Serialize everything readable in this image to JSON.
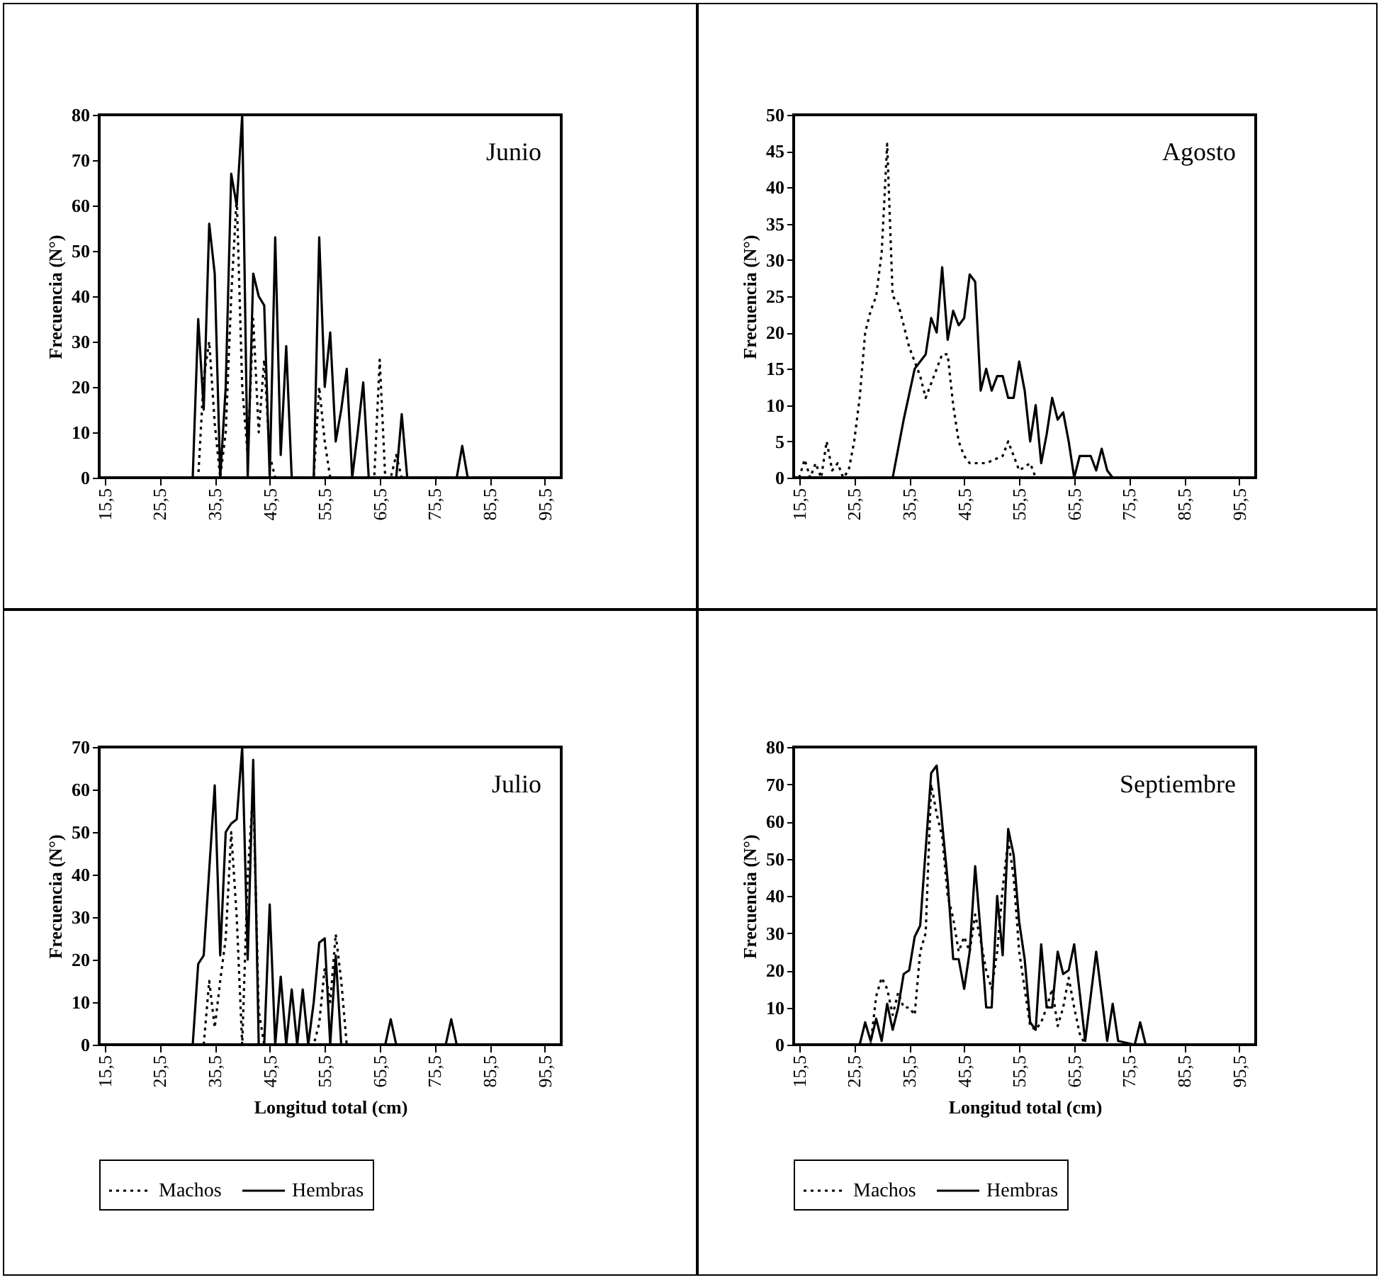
{
  "chart_data": [
    {
      "type": "line",
      "title": "Junio",
      "ylabel": "Frecuencia (N°)",
      "xlim": [
        14.5,
        98.5
      ],
      "ylim": [
        0,
        80
      ],
      "yticks": [
        0,
        10,
        20,
        30,
        40,
        50,
        60,
        70,
        80
      ],
      "xticks": [
        {
          "value": 15.5,
          "label": "15,5"
        },
        {
          "value": 25.5,
          "label": "25,5"
        },
        {
          "value": 35.5,
          "label": "35,5"
        },
        {
          "value": 45.5,
          "label": "45,5"
        },
        {
          "value": 55.5,
          "label": "55,5"
        },
        {
          "value": 65.5,
          "label": "65,5"
        },
        {
          "value": 75.5,
          "label": "75,5"
        },
        {
          "value": 85.5,
          "label": "85,5"
        },
        {
          "value": 95.5,
          "label": "95,5"
        }
      ],
      "grid": false,
      "legend": false,
      "series": [
        {
          "color": "#000000",
          "line_style": "dotted",
          "x": [
            15.5,
            32.5,
            33.5,
            34.5,
            35.5,
            36.5,
            37.5,
            38.5,
            39.5,
            40.5,
            41.5,
            42.5,
            43.5,
            44.5,
            45.5,
            46.5,
            53.5,
            54.5,
            55.5,
            56.5,
            64.5,
            65.5,
            66.5,
            67.5,
            68.5,
            69.5,
            98.5
          ],
          "values": [
            0,
            0,
            22,
            30,
            12,
            0,
            10,
            40,
            62,
            20,
            5,
            35,
            10,
            26,
            5,
            0,
            0,
            20,
            8,
            0,
            0,
            26,
            0,
            0,
            5,
            0,
            0
          ]
        },
        {
          "color": "#000000",
          "line_style": "solid",
          "x": [
            15.5,
            31.5,
            32.5,
            33.5,
            34.5,
            35.5,
            36.5,
            37.5,
            38.5,
            39.5,
            40.5,
            41.5,
            42.5,
            43.5,
            44.5,
            45.5,
            46.5,
            47.5,
            48.5,
            49.5,
            53.5,
            54.5,
            55.5,
            56.5,
            57.5,
            58.5,
            59.5,
            60.5,
            61.5,
            62.5,
            63.5,
            68.5,
            69.5,
            70.5,
            79.5,
            80.5,
            81.5,
            98.5
          ],
          "values": [
            0,
            0,
            35,
            15,
            56,
            45,
            0,
            20,
            67,
            60,
            80,
            0,
            45,
            40,
            38,
            0,
            53,
            5,
            29,
            0,
            0,
            53,
            20,
            32,
            8,
            15,
            24,
            0,
            10,
            21,
            0,
            0,
            14,
            0,
            0,
            7,
            0,
            0
          ]
        }
      ]
    },
    {
      "type": "line",
      "title": "Agosto",
      "ylabel": "Frecuencia (N°)",
      "xlim": [
        14.5,
        98.5
      ],
      "ylim": [
        0,
        50
      ],
      "yticks": [
        0,
        5,
        10,
        15,
        20,
        25,
        30,
        35,
        40,
        45,
        50
      ],
      "xticks": [
        {
          "value": 15.5,
          "label": "15,5"
        },
        {
          "value": 25.5,
          "label": "25,5"
        },
        {
          "value": 35.5,
          "label": "35,5"
        },
        {
          "value": 45.5,
          "label": "45,5"
        },
        {
          "value": 55.5,
          "label": "55,5"
        },
        {
          "value": 65.5,
          "label": "65,5"
        },
        {
          "value": 75.5,
          "label": "75,5"
        },
        {
          "value": 85.5,
          "label": "85,5"
        },
        {
          "value": 95.5,
          "label": "95,5"
        }
      ],
      "grid": false,
      "legend": false,
      "series": [
        {
          "color": "#000000",
          "line_style": "dotted",
          "x": [
            15.5,
            16.5,
            17.5,
            18.5,
            19.5,
            20.5,
            21.5,
            22.5,
            23.5,
            24.5,
            25.5,
            26.5,
            27.5,
            28.5,
            29.5,
            30.5,
            31.5,
            32.5,
            33.5,
            34.5,
            35.5,
            36.5,
            37.5,
            38.5,
            39.5,
            40.5,
            41.5,
            42.5,
            43.5,
            44.5,
            45.5,
            46.5,
            49.5,
            52.5,
            53.5,
            55.5,
            57.5,
            58.5,
            98.5
          ],
          "values": [
            0,
            2.5,
            0,
            2,
            0,
            5,
            1,
            2,
            0,
            1,
            5,
            11,
            20,
            23,
            25,
            31,
            46,
            25,
            24,
            21,
            18,
            16,
            14,
            11,
            13,
            15,
            17,
            17,
            10,
            5,
            3,
            2,
            2,
            3,
            5,
            1,
            2,
            0,
            0
          ]
        },
        {
          "color": "#000000",
          "line_style": "solid",
          "x": [
            15.5,
            32.5,
            34.5,
            36.5,
            38.5,
            39.5,
            40.5,
            41.5,
            42.5,
            43.5,
            44.5,
            45.5,
            46.5,
            47.5,
            48.5,
            49.5,
            50.5,
            51.5,
            52.5,
            53.5,
            54.5,
            55.5,
            56.5,
            57.5,
            58.5,
            59.5,
            60.5,
            61.5,
            62.5,
            63.5,
            64.5,
            65.5,
            66.5,
            67.5,
            68.5,
            69.5,
            70.5,
            71.5,
            72.5,
            98.5
          ],
          "values": [
            0,
            0,
            8,
            15,
            17,
            22,
            20,
            29,
            19,
            23,
            21,
            22,
            28,
            27,
            12,
            15,
            12,
            14,
            14,
            11,
            11,
            16,
            12,
            5,
            10,
            2,
            6,
            11,
            8,
            9,
            5,
            0,
            3,
            3,
            3,
            1,
            4,
            1,
            0,
            0
          ]
        }
      ]
    },
    {
      "type": "line",
      "title": "Julio",
      "ylabel": "Frecuencia (N°)",
      "xlabel": "Longitud total (cm)",
      "xlim": [
        14.5,
        98.5
      ],
      "ylim": [
        0,
        70
      ],
      "yticks": [
        0,
        10,
        20,
        30,
        40,
        50,
        60,
        70
      ],
      "xticks": [
        {
          "value": 15.5,
          "label": "15,5"
        },
        {
          "value": 25.5,
          "label": "25,5"
        },
        {
          "value": 35.5,
          "label": "35,5"
        },
        {
          "value": 45.5,
          "label": "45,5"
        },
        {
          "value": 55.5,
          "label": "55,5"
        },
        {
          "value": 65.5,
          "label": "65,5"
        },
        {
          "value": 75.5,
          "label": "75,5"
        },
        {
          "value": 85.5,
          "label": "85,5"
        },
        {
          "value": 95.5,
          "label": "95,5"
        }
      ],
      "grid": false,
      "legend": "bottom",
      "series": [
        {
          "name": "Machos",
          "color": "#000000",
          "line_style": "dotted",
          "x": [
            15.5,
            33.5,
            34.5,
            35.5,
            36.5,
            37.5,
            38.5,
            39.5,
            40.5,
            41.5,
            42.5,
            43.5,
            44.5,
            53.5,
            54.5,
            55.5,
            56.5,
            57.5,
            58.5,
            59.5,
            98.5
          ],
          "values": [
            0,
            0,
            15,
            4,
            15,
            25,
            50,
            30,
            0,
            40,
            60,
            8,
            0,
            0,
            5,
            18,
            10,
            26,
            15,
            0,
            0
          ]
        },
        {
          "name": "Hembras",
          "color": "#000000",
          "line_style": "solid",
          "x": [
            15.5,
            31.5,
            32.5,
            33.5,
            35.5,
            36.5,
            37.5,
            38.5,
            39.5,
            40.5,
            41.5,
            42.5,
            43.5,
            44.5,
            45.5,
            46.5,
            47.5,
            48.5,
            49.5,
            50.5,
            51.5,
            52.5,
            53.5,
            54.5,
            55.5,
            56.5,
            57.5,
            58.5,
            66.5,
            67.5,
            68.5,
            77.5,
            78.5,
            79.5,
            98.5
          ],
          "values": [
            0,
            0,
            19,
            21,
            61,
            21,
            50,
            52,
            53,
            70,
            20,
            67,
            0,
            0,
            33,
            0,
            16,
            0,
            13,
            0,
            13,
            0,
            10,
            24,
            25,
            0,
            21,
            0,
            0,
            6,
            0,
            0,
            6,
            0,
            0
          ]
        }
      ]
    },
    {
      "type": "line",
      "title": "Septiembre",
      "ylabel": "Frecuencia (N°)",
      "xlabel": "Longitud total (cm)",
      "xlim": [
        14.5,
        98.5
      ],
      "ylim": [
        0,
        80
      ],
      "yticks": [
        0,
        10,
        20,
        30,
        40,
        50,
        60,
        70,
        80
      ],
      "xticks": [
        {
          "value": 15.5,
          "label": "15,5"
        },
        {
          "value": 25.5,
          "label": "25,5"
        },
        {
          "value": 35.5,
          "label": "35,5"
        },
        {
          "value": 45.5,
          "label": "45,5"
        },
        {
          "value": 55.5,
          "label": "55,5"
        },
        {
          "value": 65.5,
          "label": "65,5"
        },
        {
          "value": 75.5,
          "label": "75,5"
        },
        {
          "value": 85.5,
          "label": "85,5"
        },
        {
          "value": 95.5,
          "label": "95,5"
        }
      ],
      "grid": false,
      "legend": "bottom",
      "series": [
        {
          "name": "Machos",
          "color": "#000000",
          "line_style": "dotted",
          "x": [
            15.5,
            28.5,
            29.5,
            30.5,
            31.5,
            32.5,
            33.5,
            34.5,
            35.5,
            36.5,
            37.5,
            38.5,
            39.5,
            40.5,
            41.5,
            42.5,
            43.5,
            44.5,
            45.5,
            46.5,
            47.5,
            48.5,
            49.5,
            50.5,
            51.5,
            52.5,
            53.5,
            54.5,
            55.5,
            56.5,
            57.5,
            58.5,
            59.5,
            60.5,
            61.5,
            62.5,
            63.5,
            64.5,
            65.5,
            66.5,
            67.5,
            98.5
          ],
          "values": [
            0,
            0,
            13,
            18,
            15,
            8,
            14,
            10,
            10,
            8,
            25,
            30,
            70,
            62,
            56,
            40,
            34,
            25,
            29,
            25,
            35,
            28,
            20,
            15,
            25,
            42,
            55,
            45,
            25,
            15,
            5,
            4,
            6,
            10,
            15,
            5,
            10,
            18,
            10,
            3,
            0,
            0
          ]
        },
        {
          "name": "Hembras",
          "color": "#000000",
          "line_style": "solid",
          "x": [
            15.5,
            26.5,
            27.5,
            28.5,
            29.5,
            30.5,
            31.5,
            32.5,
            33.5,
            34.5,
            35.5,
            36.5,
            37.5,
            39.5,
            40.5,
            42.5,
            43.5,
            44.5,
            45.5,
            46.5,
            47.5,
            48.5,
            49.5,
            50.5,
            51.5,
            52.5,
            53.5,
            54.5,
            55.5,
            56.5,
            57.5,
            58.5,
            59.5,
            60.5,
            61.5,
            62.5,
            63.5,
            64.5,
            65.5,
            66.5,
            67.5,
            69.5,
            71.5,
            72.5,
            73.5,
            76.5,
            77.5,
            78.5,
            98.5
          ],
          "values": [
            0,
            0,
            6,
            1,
            7,
            1,
            11,
            4,
            10,
            19,
            20,
            29,
            32,
            73,
            75,
            44,
            23,
            23,
            15,
            25,
            48,
            30,
            10,
            10,
            40,
            24,
            58,
            51,
            33,
            23,
            6,
            4,
            27,
            10,
            10,
            25,
            19,
            20,
            27,
            14,
            1,
            25,
            1,
            11,
            1,
            0,
            6,
            0,
            0
          ]
        }
      ]
    }
  ]
}
